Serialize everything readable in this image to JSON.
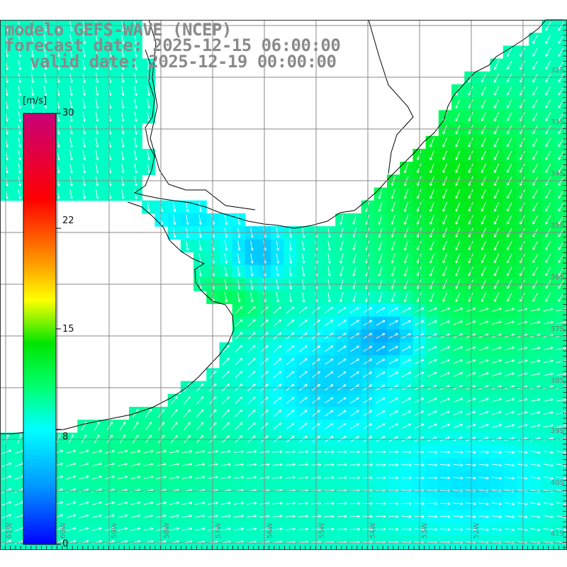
{
  "title": {
    "line1": "modelo GEFS-WAVE (NCEP)",
    "line2": "forecast date: 2025-12-15 06:00:00",
    "line3": "valid date: 2025-12-19 00:00:00"
  },
  "colorbar": {
    "unit": "[m/s]",
    "ticks": [
      "30",
      "22",
      "15",
      "8",
      "0"
    ],
    "tick_values": [
      30,
      22,
      15,
      8,
      0
    ],
    "range": [
      0,
      30
    ],
    "colors": [
      "#0000ff",
      "#00a0ff",
      "#00ffff",
      "#00ff00",
      "#ffff00",
      "#ff8000",
      "#ff0000",
      "#c0007a"
    ]
  },
  "axes": {
    "lat_labels": [
      "32S",
      "33S",
      "34S",
      "35S",
      "36S",
      "37S",
      "38S",
      "39S",
      "40S",
      "41S"
    ],
    "lat_values": [
      -32,
      -33,
      -34,
      -35,
      -36,
      -37,
      -38,
      -39,
      -40,
      -41
    ],
    "lon_labels": [
      "61W",
      "60W",
      "59W",
      "58W",
      "57W",
      "56W",
      "55W",
      "54W",
      "53W",
      "52W"
    ],
    "lon_values": [
      -61,
      -60,
      -59,
      -58,
      -57,
      -56,
      -55,
      -54,
      -53,
      -52
    ],
    "grid_color": "#888888"
  },
  "field": {
    "variable": "wind speed",
    "units": "m/s",
    "land_color": "#ffffff",
    "coast_color": "#000000",
    "arrow_color": "#ffffff"
  }
}
